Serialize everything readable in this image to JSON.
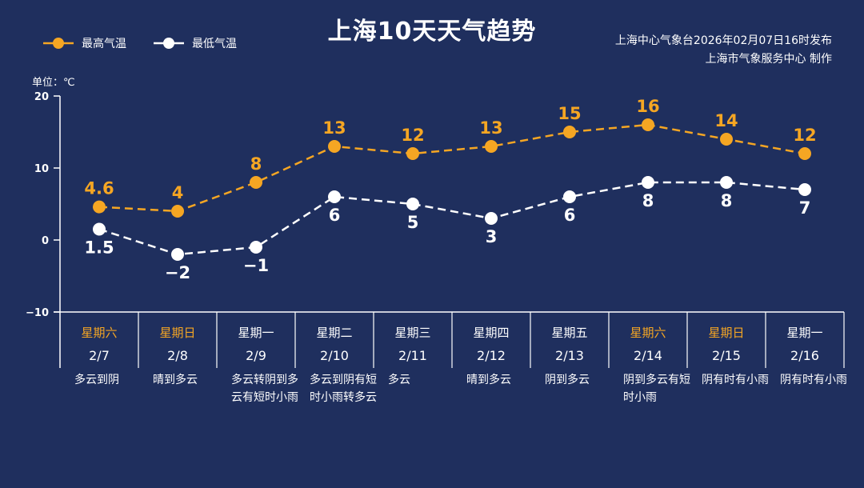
{
  "header": {
    "title": "上海10天天气趋势",
    "issuer_line1": "上海中心气象台2026年02月07日16时发布",
    "issuer_line2": "上海市气象服务中心 制作",
    "unit_label": "单位：℃"
  },
  "colors": {
    "background": "#1f2f5e",
    "high": "#f5a623",
    "low": "#ffffff",
    "weekend_text": "#f5a623",
    "weekday_text": "#ffffff"
  },
  "chart_data": {
    "type": "line",
    "title": "上海10天天气趋势",
    "ylabel": "单位：℃",
    "ylim": [
      -10,
      20
    ],
    "yticks": [
      "20",
      "10",
      "0",
      "−10"
    ],
    "grid": false,
    "legend_position": "top-left",
    "categories": [
      "2/7",
      "2/8",
      "2/9",
      "2/10",
      "2/11",
      "2/12",
      "2/13",
      "2/14",
      "2/15",
      "2/16"
    ],
    "weekdays": [
      "星期六",
      "星期日",
      "星期一",
      "星期二",
      "星期三",
      "星期四",
      "星期五",
      "星期六",
      "星期日",
      "星期一"
    ],
    "weekend": [
      true,
      true,
      false,
      false,
      false,
      false,
      false,
      true,
      true,
      false
    ],
    "conditions": [
      "多云到阴",
      "晴到多云",
      "多云转阴到多云有短时小雨",
      "多云到阴有短时小雨转多云",
      "多云",
      "晴到多云",
      "阴到多云",
      "阴到多云有短时小雨",
      "阴有时有小雨",
      "阴有时有小雨"
    ],
    "series": [
      {
        "name": "最高气温",
        "values": [
          4.6,
          4,
          8,
          13,
          12,
          13,
          15,
          16,
          14,
          12
        ],
        "labels": [
          "4.6",
          "4",
          "8",
          "13",
          "12",
          "13",
          "15",
          "16",
          "14",
          "12"
        ]
      },
      {
        "name": "最低气温",
        "values": [
          1.5,
          -2,
          -1,
          6,
          5,
          3,
          6,
          8,
          8,
          7
        ],
        "labels": [
          "1.5",
          "−2",
          "−1",
          "6",
          "5",
          "3",
          "6",
          "8",
          "8",
          "7"
        ]
      }
    ]
  }
}
